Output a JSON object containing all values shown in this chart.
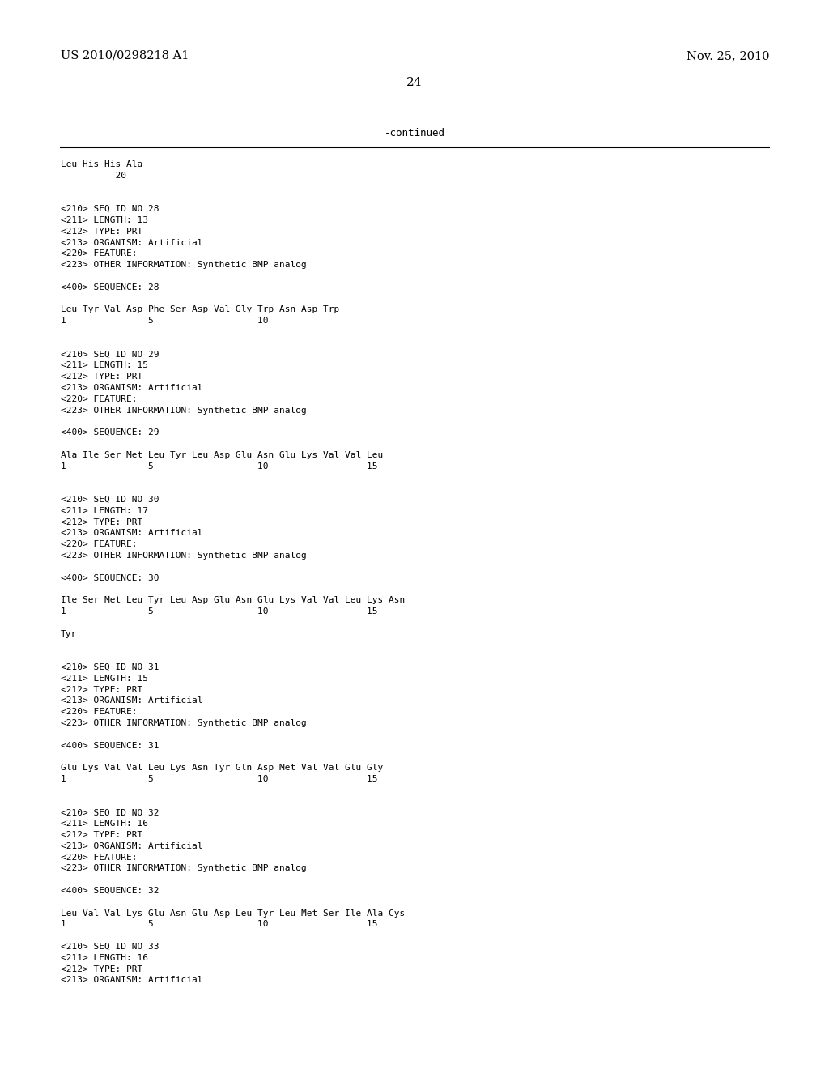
{
  "header_left": "US 2010/0298218 A1",
  "header_right": "Nov. 25, 2010",
  "page_number": "24",
  "continued_label": "-continued",
  "background_color": "#ffffff",
  "text_color": "#000000",
  "lines": [
    "Leu His His Ala",
    "          20",
    "",
    "",
    "<210> SEQ ID NO 28",
    "<211> LENGTH: 13",
    "<212> TYPE: PRT",
    "<213> ORGANISM: Artificial",
    "<220> FEATURE:",
    "<223> OTHER INFORMATION: Synthetic BMP analog",
    "",
    "<400> SEQUENCE: 28",
    "",
    "Leu Tyr Val Asp Phe Ser Asp Val Gly Trp Asn Asp Trp",
    "1               5                   10",
    "",
    "",
    "<210> SEQ ID NO 29",
    "<211> LENGTH: 15",
    "<212> TYPE: PRT",
    "<213> ORGANISM: Artificial",
    "<220> FEATURE:",
    "<223> OTHER INFORMATION: Synthetic BMP analog",
    "",
    "<400> SEQUENCE: 29",
    "",
    "Ala Ile Ser Met Leu Tyr Leu Asp Glu Asn Glu Lys Val Val Leu",
    "1               5                   10                  15",
    "",
    "",
    "<210> SEQ ID NO 30",
    "<211> LENGTH: 17",
    "<212> TYPE: PRT",
    "<213> ORGANISM: Artificial",
    "<220> FEATURE:",
    "<223> OTHER INFORMATION: Synthetic BMP analog",
    "",
    "<400> SEQUENCE: 30",
    "",
    "Ile Ser Met Leu Tyr Leu Asp Glu Asn Glu Lys Val Val Leu Lys Asn",
    "1               5                   10                  15",
    "",
    "Tyr",
    "",
    "",
    "<210> SEQ ID NO 31",
    "<211> LENGTH: 15",
    "<212> TYPE: PRT",
    "<213> ORGANISM: Artificial",
    "<220> FEATURE:",
    "<223> OTHER INFORMATION: Synthetic BMP analog",
    "",
    "<400> SEQUENCE: 31",
    "",
    "Glu Lys Val Val Leu Lys Asn Tyr Gln Asp Met Val Val Glu Gly",
    "1               5                   10                  15",
    "",
    "",
    "<210> SEQ ID NO 32",
    "<211> LENGTH: 16",
    "<212> TYPE: PRT",
    "<213> ORGANISM: Artificial",
    "<220> FEATURE:",
    "<223> OTHER INFORMATION: Synthetic BMP analog",
    "",
    "<400> SEQUENCE: 32",
    "",
    "Leu Val Val Lys Glu Asn Glu Asp Leu Tyr Leu Met Ser Ile Ala Cys",
    "1               5                   10                  15",
    "",
    "<210> SEQ ID NO 33",
    "<211> LENGTH: 16",
    "<212> TYPE: PRT",
    "<213> ORGANISM: Artificial"
  ]
}
